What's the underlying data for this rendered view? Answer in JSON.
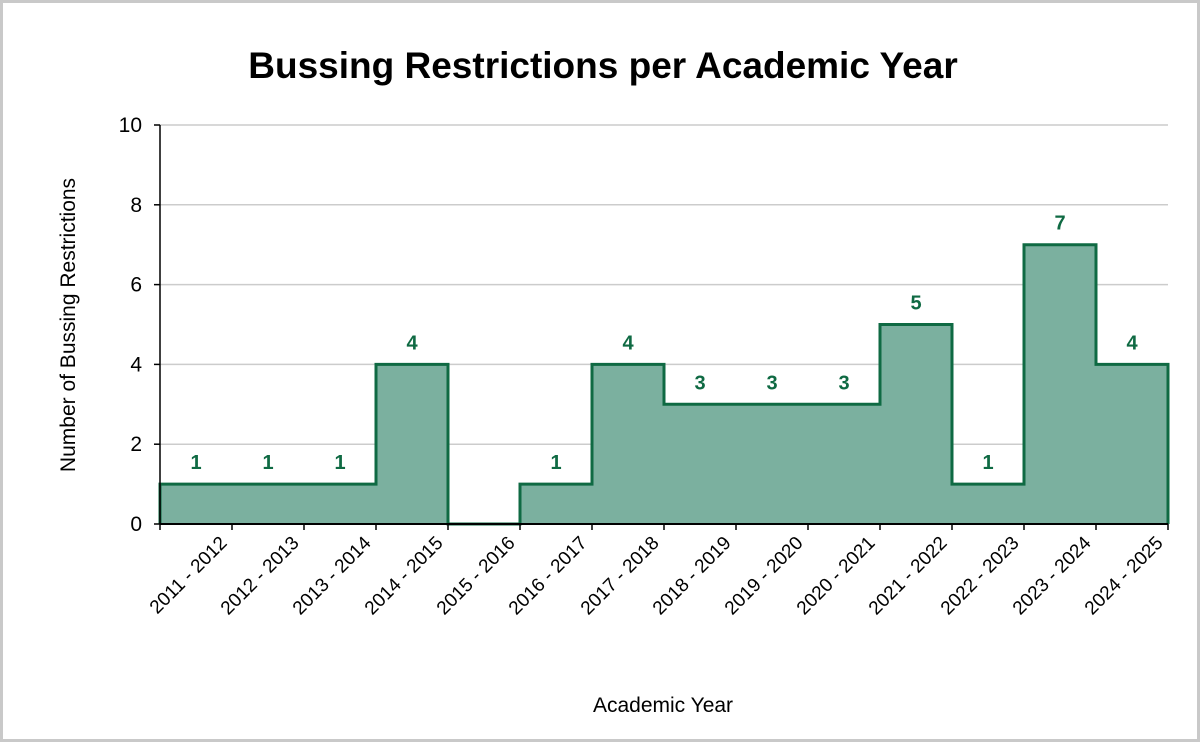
{
  "chart_data": {
    "type": "area",
    "title": "Bussing Restrictions per Academic Year",
    "xlabel": "Academic Year",
    "ylabel": "Number of Bussing Restrictions",
    "categories": [
      "2011 - 2012",
      "2012 - 2013",
      "2013 - 2014",
      "2014 - 2015",
      "2015 - 2016",
      "2016 - 2017",
      "2017 - 2018",
      "2018 - 2019",
      "2019 - 2020",
      "2020 - 2021",
      "2021 - 2022",
      "2022 - 2023",
      "2023 - 2024",
      "2024 - 2025"
    ],
    "values": [
      1,
      1,
      1,
      4,
      0,
      1,
      4,
      3,
      3,
      3,
      5,
      1,
      7,
      4
    ],
    "data_labels": [
      "1",
      "1",
      "1",
      "4",
      "",
      "1",
      "4",
      "3",
      "3",
      "3",
      "5",
      "1",
      "7",
      "4"
    ],
    "yticks": [
      "0",
      "2",
      "4",
      "6",
      "8",
      "10"
    ],
    "ylim": [
      0,
      10
    ],
    "step": true,
    "grid": true,
    "colors": {
      "fill": "#7bb09f",
      "line": "#0f6a43",
      "label": "#0f6a43",
      "grid": "#cccccc"
    }
  }
}
